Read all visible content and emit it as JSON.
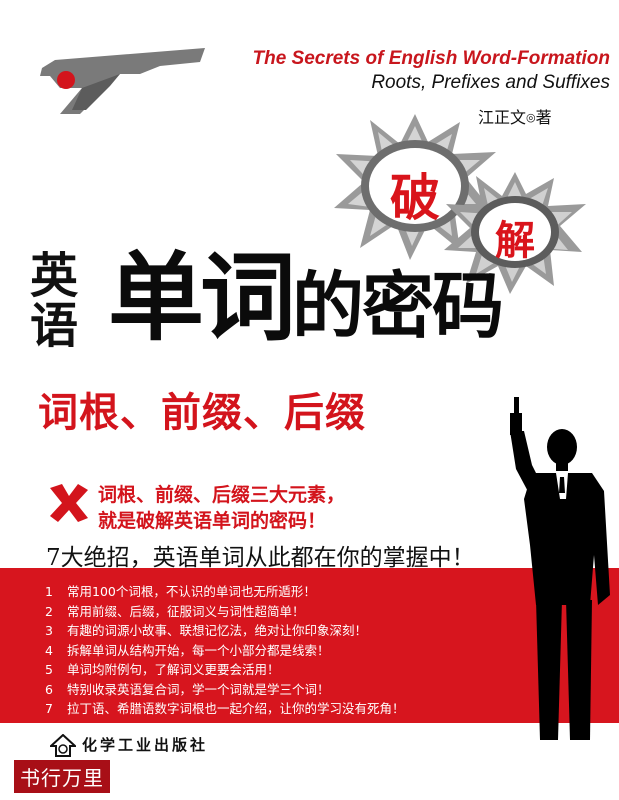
{
  "cover": {
    "english_title_line1": "The Secrets of English Word-Formation",
    "english_title_line2": "Roots, Prefixes and Suffixes",
    "author_name": "江正文",
    "author_symbol": "◎",
    "author_role": "著",
    "hole_char_1": "破",
    "hole_char_2": "解",
    "title_prefix_1": "英",
    "title_prefix_2": "语",
    "title_main_big": "单词",
    "title_main_small": "的密码",
    "subtitle": "词根、前缀、后缀",
    "tagline_line1": "词根、前缀、后缀三大元素，",
    "tagline_line2": "就是破解英语单词的密码！",
    "slogan": "7大绝招，英语单词从此都在你的掌握中！",
    "features": [
      {
        "num": "1",
        "text": "常用100个词根，不认识的单词也无所遁形！"
      },
      {
        "num": "2",
        "text": "常用前缀、后缀，征服词义与词性超简单！"
      },
      {
        "num": "3",
        "text": "有趣的词源小故事、联想记忆法，绝对让你印象深刻！"
      },
      {
        "num": "4",
        "text": "拆解单词从结构开始，每一个小部分都是线索！"
      },
      {
        "num": "5",
        "text": "单词均附例句，了解词义更要会活用！"
      },
      {
        "num": "6",
        "text": "特别收录英语复合词，学一个词就是学三个词！"
      },
      {
        "num": "7",
        "text": "拉丁语、希腊语数字词根也一起介绍，让你的学习没有死角！"
      }
    ],
    "publisher": "化学工业出版社",
    "watermark": "书行万里",
    "colors": {
      "accent_red": "#d7151e",
      "dark": "#111111"
    }
  }
}
